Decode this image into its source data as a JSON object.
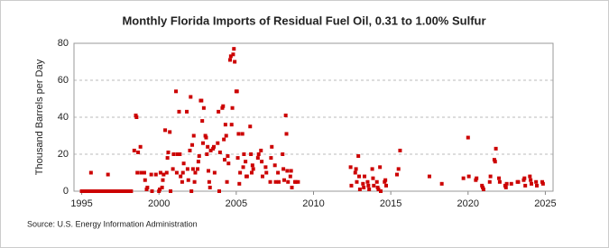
{
  "chart_data": {
    "type": "scatter",
    "title": "Monthly Florida Imports of Residual Fuel Oil, 0.31 to 1.00% Sulfur",
    "y_label": "Thousand Barrels per Day",
    "source": "Source: U.S. Energy Information Administration",
    "color": "#cc0000",
    "grid": true,
    "xlim": [
      1994.5,
      2025.5
    ],
    "ylim": [
      0,
      80
    ],
    "xticks": [
      1995,
      2000,
      2005,
      2010,
      2015,
      2020,
      2025
    ],
    "yticks": [
      0,
      20,
      40,
      60,
      80
    ],
    "x": [
      1995.0,
      1995.1,
      1995.2,
      1995.3,
      1995.4,
      1995.5,
      1995.6,
      1995.7,
      1995.8,
      1995.9,
      1996.0,
      1996.1,
      1996.2,
      1996.3,
      1996.4,
      1996.5,
      1996.6,
      1996.7,
      1996.8,
      1996.9,
      1997.0,
      1997.1,
      1997.2,
      1997.3,
      1997.4,
      1997.5,
      1997.6,
      1997.7,
      1997.8,
      1997.9,
      1998.0,
      1998.1,
      1998.2,
      1995.6,
      1996.7,
      1998.4,
      1998.5,
      1998.55,
      1998.6,
      1998.65,
      1998.8,
      1998.85,
      1999.0,
      1999.05,
      1999.1,
      1999.2,
      1999.25,
      1999.5,
      1999.55,
      1999.8,
      2000.0,
      2000.05,
      2000.1,
      2000.2,
      2000.25,
      2000.3,
      2000.4,
      2000.5,
      2000.55,
      2000.6,
      2000.7,
      2000.75,
      2000.9,
      2000.95,
      2001.1,
      2001.15,
      2001.2,
      2001.3,
      2001.35,
      2001.4,
      2001.5,
      2001.55,
      2001.6,
      2001.8,
      2001.85,
      2001.9,
      2002.0,
      2002.05,
      2002.1,
      2002.15,
      2002.2,
      2002.25,
      2002.3,
      2002.35,
      2002.5,
      2002.55,
      2002.6,
      2002.7,
      2002.75,
      2002.8,
      2002.85,
      2002.9,
      2003.0,
      2003.05,
      2003.1,
      2003.15,
      2003.2,
      2003.25,
      2003.3,
      2003.35,
      2003.5,
      2003.55,
      2003.6,
      2003.8,
      2003.85,
      2003.9,
      2003.95,
      2004.1,
      2004.15,
      2004.2,
      2004.25,
      2004.3,
      2004.35,
      2004.4,
      2004.45,
      2004.5,
      2004.6,
      2004.65,
      2004.7,
      2004.75,
      2004.8,
      2004.85,
      2004.9,
      2005.0,
      2005.05,
      2005.1,
      2005.15,
      2005.2,
      2005.25,
      2005.4,
      2005.45,
      2005.5,
      2005.6,
      2005.65,
      2005.7,
      2005.9,
      2005.95,
      2006.0,
      2006.05,
      2006.1,
      2006.4,
      2006.45,
      2006.6,
      2006.65,
      2006.7,
      2006.9,
      2006.95,
      2007.2,
      2007.25,
      2007.3,
      2007.5,
      2007.55,
      2007.7,
      2007.75,
      2008.0,
      2008.05,
      2008.1,
      2008.2,
      2008.25,
      2008.3,
      2008.35,
      2008.5,
      2008.55,
      2008.6,
      2008.8,
      2008.85,
      2009.0,
      2012.4,
      2012.45,
      2012.7,
      2012.75,
      2012.8,
      2012.9,
      2012.95,
      2013.0,
      2013.2,
      2013.25,
      2013.3,
      2013.5,
      2013.55,
      2013.6,
      2013.8,
      2013.85,
      2013.9,
      2014.1,
      2014.15,
      2014.2,
      2014.3,
      2014.35,
      2014.6,
      2014.65,
      2014.7,
      2015.4,
      2015.5,
      2015.6,
      2017.5,
      2018.3,
      2019.7,
      2020.0,
      2020.05,
      2020.5,
      2020.55,
      2020.9,
      2020.95,
      2021.0,
      2021.4,
      2021.45,
      2021.7,
      2021.75,
      2021.8,
      2022.0,
      2022.05,
      2022.4,
      2022.45,
      2022.5,
      2022.8,
      2023.2,
      2023.25,
      2023.6,
      2023.65,
      2023.7,
      2024.0,
      2024.05,
      2024.1,
      2024.4,
      2024.45,
      2024.8,
      2024.85
    ],
    "values": [
      0,
      0,
      0,
      0,
      0,
      0,
      0,
      0,
      0,
      0,
      0,
      0,
      0,
      0,
      0,
      0,
      0,
      0,
      0,
      0,
      0,
      0,
      0,
      0,
      0,
      0,
      0,
      0,
      0,
      0,
      0,
      0,
      0,
      10,
      9,
      22,
      41,
      40,
      10,
      21,
      24,
      10,
      10,
      10,
      6,
      1,
      2,
      9,
      0,
      9,
      0,
      1,
      10,
      2,
      6,
      9,
      33,
      10,
      18,
      21,
      32,
      0,
      12,
      20,
      54,
      10,
      20,
      43,
      20,
      8,
      5,
      10,
      15,
      43,
      12,
      6,
      22,
      51,
      0,
      25,
      12,
      30,
      5,
      10,
      12,
      16,
      19,
      49,
      49,
      38,
      26,
      45,
      30,
      29,
      20,
      24,
      11,
      5,
      2,
      22,
      23,
      24,
      10,
      26,
      43,
      0,
      21,
      45,
      46,
      28,
      17,
      36,
      30,
      5,
      19,
      15,
      71,
      73,
      36,
      45,
      74,
      77,
      70,
      54,
      54,
      18,
      31,
      4,
      10,
      31,
      13,
      20,
      16,
      8,
      8,
      35,
      20,
      10,
      14,
      12,
      18,
      20,
      22,
      16,
      8,
      13,
      10,
      5,
      18,
      24,
      14,
      5,
      10,
      5,
      20,
      12,
      6,
      41,
      31,
      11,
      5,
      8,
      11,
      2,
      5,
      5,
      5,
      13,
      3,
      10,
      12,
      5,
      19,
      8,
      1,
      4,
      2,
      8,
      5,
      3,
      1,
      12,
      7,
      3,
      5,
      2,
      1,
      13,
      0,
      5,
      6,
      3,
      9,
      12,
      22,
      8,
      4,
      7,
      29,
      8,
      6,
      7,
      3,
      2,
      1,
      5,
      8,
      17,
      16,
      23,
      7,
      5,
      3,
      2,
      4,
      4,
      5,
      5,
      6,
      7,
      3,
      8,
      6,
      4,
      5,
      3,
      5,
      4
    ]
  }
}
